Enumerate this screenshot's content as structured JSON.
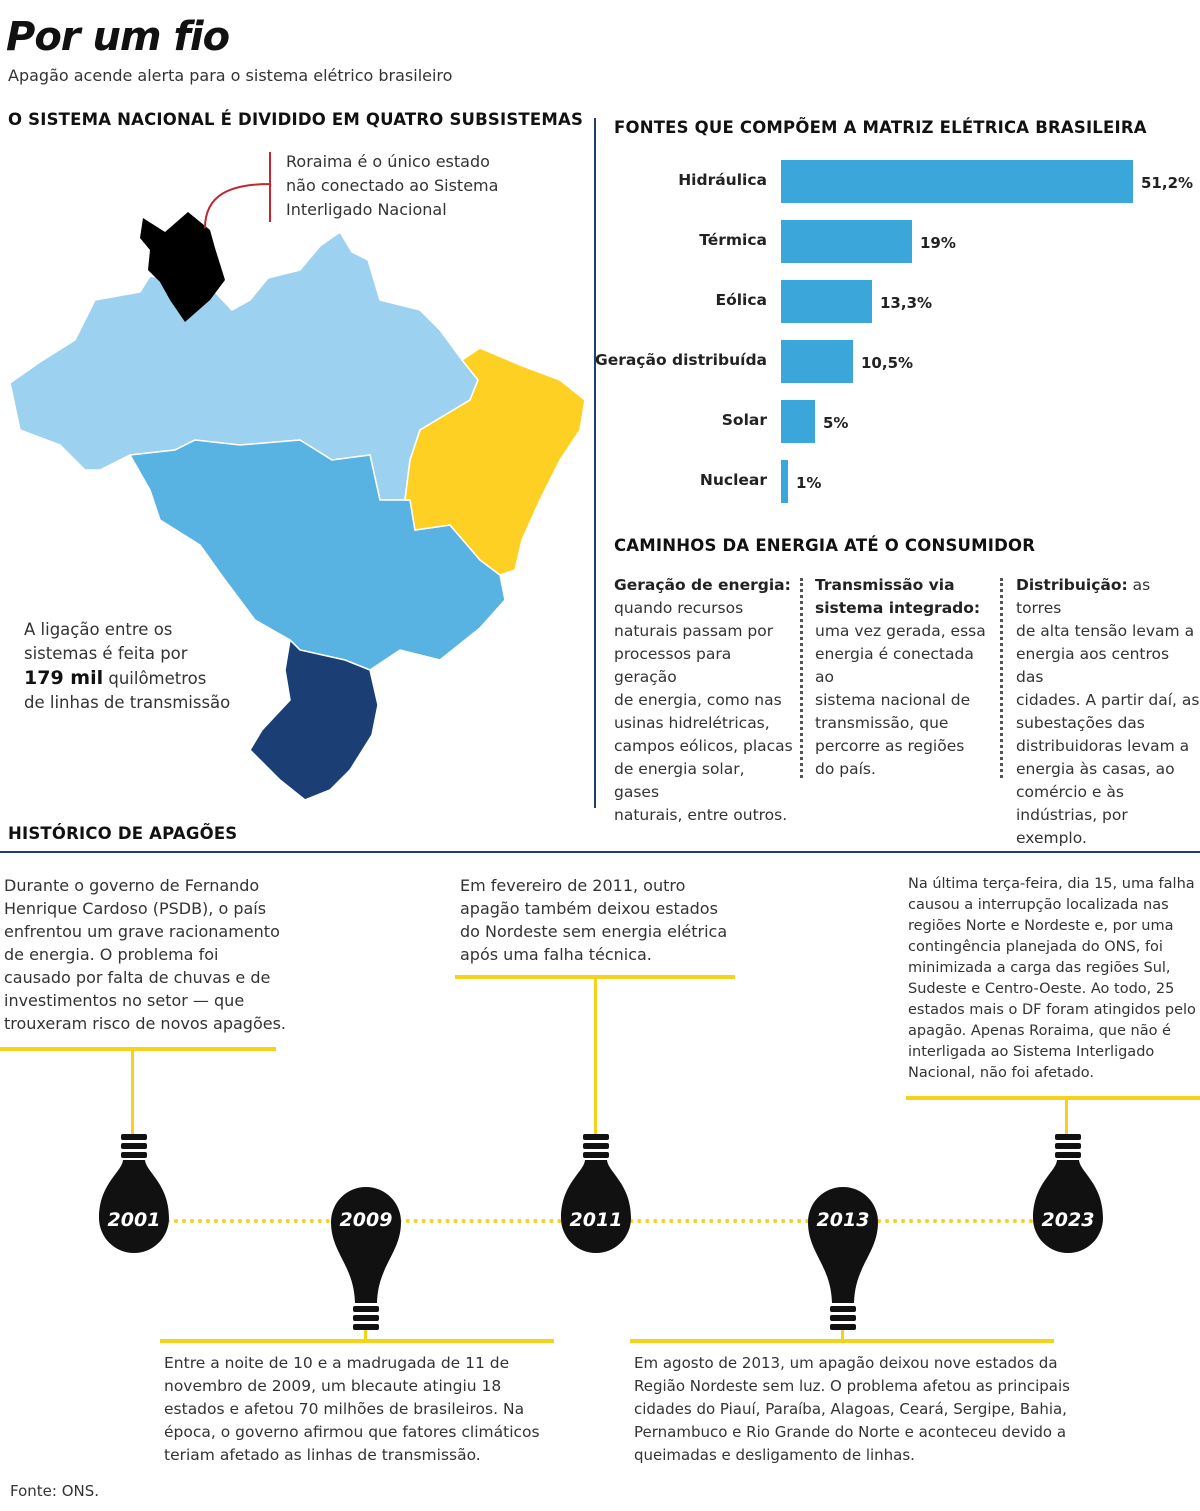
{
  "header": {
    "title": "Por um fio",
    "subtitle": "Apagão acende alerta  para o sistema elétrico brasileiro"
  },
  "map_section": {
    "heading": "O SISTEMA NACIONAL É DIVIDIDO EM QUATRO SUBSISTEMAS",
    "roraima_note": [
      "Roraima é o único estado",
      "não conectado ao Sistema",
      "Interligado Nacional"
    ],
    "link_note": {
      "line1": "A ligação entre os",
      "line2": "sistemas é feita por",
      "highlight": "179 mil",
      "line3_rest": " quilômetros",
      "line4": "de linhas de transmissão"
    },
    "colors": {
      "norte": "#9dd1f0",
      "sudeste_centro_oeste": "#58b2e2",
      "nordeste": "#fdd023",
      "sul": "#1b3f74",
      "roraima": "#000000"
    }
  },
  "chart_data": {
    "type": "bar",
    "orientation": "horizontal",
    "title": "FONTES QUE COMPÕEM A MATRIZ ELÉTRICA BRASILEIRA",
    "categories": [
      "Hidráulica",
      "Térmica",
      "Eólica",
      "Geração distribuída",
      "Solar",
      "Nuclear"
    ],
    "values": [
      51.2,
      19,
      13.3,
      10.5,
      5,
      1
    ],
    "value_labels": [
      "51,2%",
      "19%",
      "13,3%",
      "10,5%",
      "5%",
      "1%"
    ],
    "unit": "%",
    "bar_color": "#3aa6da",
    "grid": false,
    "legend": false
  },
  "paths_section": {
    "heading": "CAMINHOS DA ENERGIA ATÉ O CONSUMIDOR",
    "columns": [
      {
        "title_lines": [
          "Geração de energia:"
        ],
        "body_lines": [
          "quando recursos",
          "naturais passam por",
          "processos para geração",
          "de energia, como nas",
          "usinas hidrelétricas,",
          "campos eólicos, placas",
          "de energia solar, gases",
          "naturais, entre outros."
        ]
      },
      {
        "title_lines": [
          "Transmissão via",
          "sistema integrado:"
        ],
        "body_lines": [
          "uma vez gerada, essa",
          "energia é conectada ao",
          "sistema nacional de",
          "transmissão, que",
          "percorre as regiões",
          "do país."
        ]
      },
      {
        "title_lines": [
          "Distribuição:"
        ],
        "title_rest": " as torres",
        "body_lines": [
          "de alta tensão levam a",
          "energia aos centros das",
          "cidades. A partir daí, as",
          "subestações das",
          "distribuidoras levam a",
          "energia às casas, ao",
          "comércio e às",
          "indústrias, por exemplo."
        ]
      }
    ]
  },
  "history": {
    "heading": "HISTÓRICO DE APAGÕES",
    "line_color": "#f6d21b",
    "years": [
      "2001",
      "2009",
      "2011",
      "2013",
      "2023"
    ],
    "texts": {
      "y2001": [
        "Durante o governo de Fernando",
        "Henrique Cardoso (PSDB), o país",
        "enfrentou um grave racionamento",
        "de energia. O problema foi",
        "causado por falta de chuvas e de",
        "investimentos no setor — que",
        "trouxeram risco de novos apagões."
      ],
      "y2011": [
        "Em fevereiro de 2011, outro",
        "apagão também deixou estados",
        "do Nordeste sem energia elétrica",
        "após uma falha técnica."
      ],
      "y2023": [
        "Na última terça-feira, dia 15, uma falha",
        "causou a interrupção localizada nas",
        "regiões Norte e Nordeste e, por uma",
        "contingência planejada do ONS, foi",
        "minimizada a carga das regiões Sul,",
        "Sudeste e Centro-Oeste. Ao todo, 25",
        "estados mais o DF foram atingidos pelo",
        "apagão. Apenas Roraima, que não é",
        "interligada ao Sistema Interligado",
        "Nacional, não foi afetado."
      ],
      "y2009": [
        "Entre a noite de 10 e a madrugada de 11 de",
        "novembro de 2009, um blecaute atingiu 18",
        "estados e afetou 70 milhões de brasileiros. Na",
        "época, o governo afirmou que fatores climáticos",
        "teriam afetado as linhas de transmissão."
      ],
      "y2013": [
        "Em agosto de 2013, um apagão deixou nove estados da",
        "Região Nordeste sem luz. O problema afetou as principais",
        "cidades do Piauí, Paraíba, Alagoas, Ceará, Sergipe, Bahia,",
        "Pernambuco e Rio Grande do Norte e aconteceu devido a",
        "queimadas e desligamento de linhas."
      ]
    }
  },
  "source": "Fonte: ONS."
}
